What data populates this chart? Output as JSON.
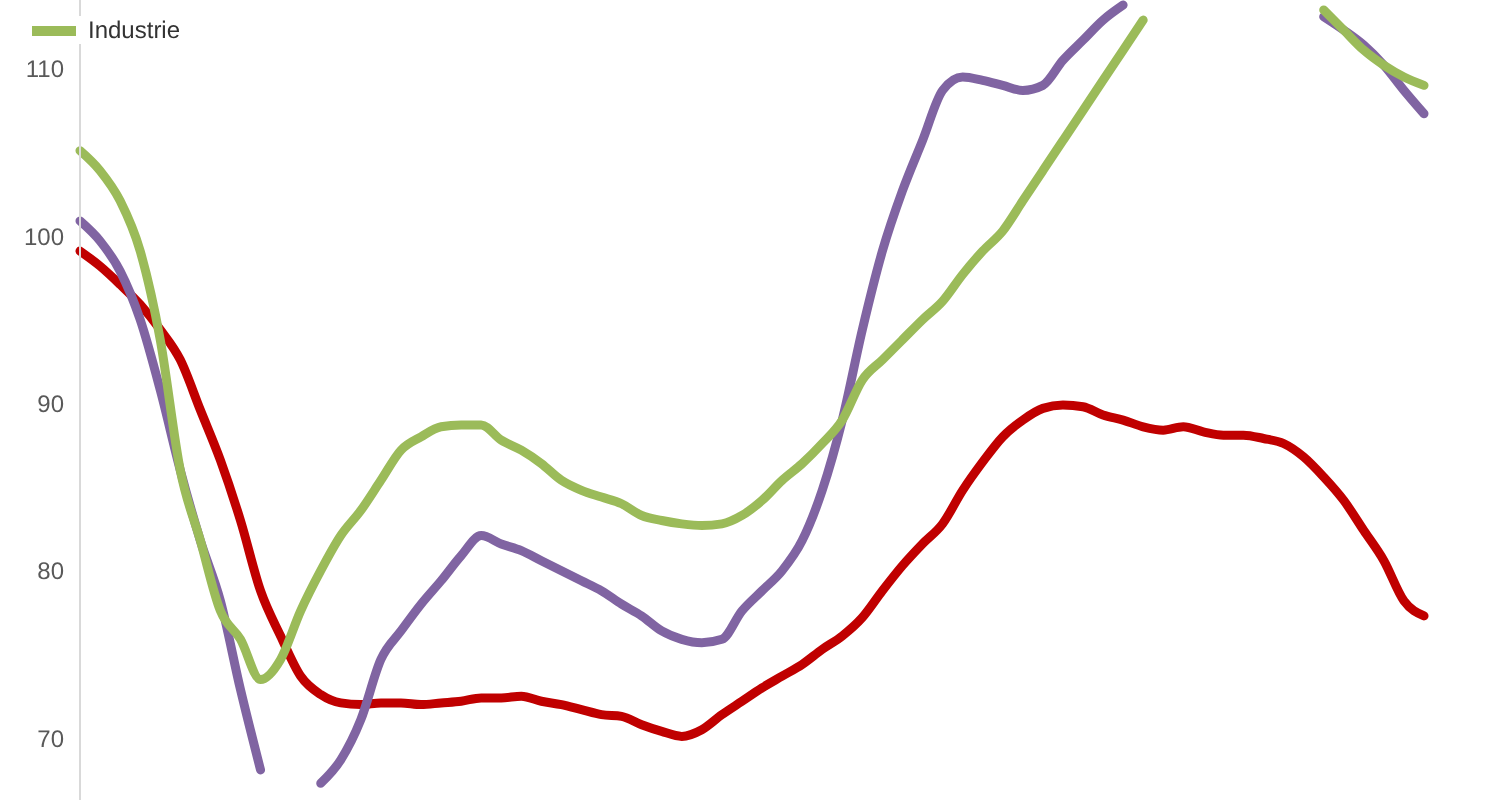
{
  "chart_data": {
    "type": "line",
    "categories": [
      null,
      null,
      null,
      null,
      null,
      null,
      null,
      null,
      null,
      null,
      null,
      null,
      null,
      null,
      null,
      null,
      null,
      null,
      null,
      null,
      null,
      null,
      null,
      null,
      null,
      null,
      null,
      null,
      null,
      null,
      null,
      null,
      null,
      null,
      null,
      null,
      null,
      null,
      null,
      null,
      null,
      null,
      null,
      null,
      null,
      null,
      null,
      null,
      null,
      null,
      null,
      null,
      null,
      null,
      null,
      null,
      null,
      null,
      null,
      null,
      null,
      null,
      null,
      null,
      null,
      null,
      null,
      null
    ],
    "series": [
      {
        "color": "#c00000",
        "values": [
          99.1,
          98.2,
          97.1,
          95.9,
          94.4,
          92.6,
          89.6,
          86.6,
          83.0,
          78.8,
          76.1,
          73.7,
          72.6,
          72.1,
          72.0,
          72.1,
          72.1,
          72.0,
          72.1,
          72.2,
          72.4,
          72.4,
          72.5,
          72.2,
          72.0,
          71.7,
          71.4,
          71.3,
          70.8,
          70.4,
          70.1,
          70.5,
          71.4,
          72.2,
          73.0,
          73.7,
          74.4,
          75.3,
          76.1,
          77.2,
          78.8,
          80.3,
          81.6,
          82.8,
          84.8,
          86.5,
          88.0,
          89.0,
          89.7,
          89.9,
          89.8,
          89.3,
          89.0,
          88.6,
          88.4,
          88.6,
          88.3,
          88.1,
          88.1,
          87.9,
          87.6,
          86.8,
          85.6,
          84.2,
          82.4,
          80.6,
          78.2,
          77.3
        ]
      },
      {
        "color": "#8064a2",
        "values": [
          100.9,
          99.7,
          97.9,
          95.0,
          90.8,
          86.0,
          81.8,
          78.2,
          72.9,
          68.1,
          null,
          null,
          67.3,
          68.7,
          71.1,
          74.7,
          76.4,
          78.0,
          79.4,
          80.9,
          82.1,
          81.6,
          81.2,
          80.6,
          80.0,
          79.4,
          78.8,
          78.0,
          77.3,
          76.4,
          75.9,
          75.7,
          75.9,
          77.6,
          78.8,
          80.0,
          81.8,
          84.8,
          89.0,
          94.4,
          99.1,
          102.7,
          105.7,
          108.7,
          109.5,
          109.3,
          109.0,
          108.7,
          109.0,
          110.5,
          111.7,
          112.9,
          113.8,
          null,
          null,
          null,
          null,
          null,
          null,
          null,
          null,
          null,
          113.1,
          112.3,
          111.4,
          110.2,
          108.7,
          107.3
        ]
      },
      {
        "name": "Industrie",
        "color": "#9bbb59",
        "values": [
          105.1,
          103.9,
          102.1,
          99.1,
          93.8,
          86.0,
          81.8,
          77.6,
          75.9,
          73.5,
          74.7,
          77.6,
          80.0,
          82.1,
          83.6,
          85.4,
          87.2,
          88.0,
          88.6,
          88.7,
          88.7,
          87.8,
          87.2,
          86.4,
          85.4,
          84.8,
          84.4,
          84.0,
          83.3,
          83.0,
          82.8,
          82.7,
          82.8,
          83.3,
          84.2,
          85.4,
          86.4,
          87.6,
          89.0,
          91.4,
          92.6,
          93.8,
          95.0,
          96.1,
          97.7,
          99.1,
          100.3,
          102.1,
          103.9,
          105.7,
          107.5,
          109.3,
          111.1,
          112.9,
          null,
          null,
          null,
          null,
          null,
          null,
          null,
          null,
          113.5,
          112.3,
          111.1,
          110.2,
          109.5,
          109.0
        ]
      }
    ],
    "ylim": [
      66.3,
      114.1
    ],
    "yticks": [
      70,
      80,
      90,
      100,
      110
    ],
    "legend": "top left",
    "marker": "none",
    "line_style": "solid"
  }
}
